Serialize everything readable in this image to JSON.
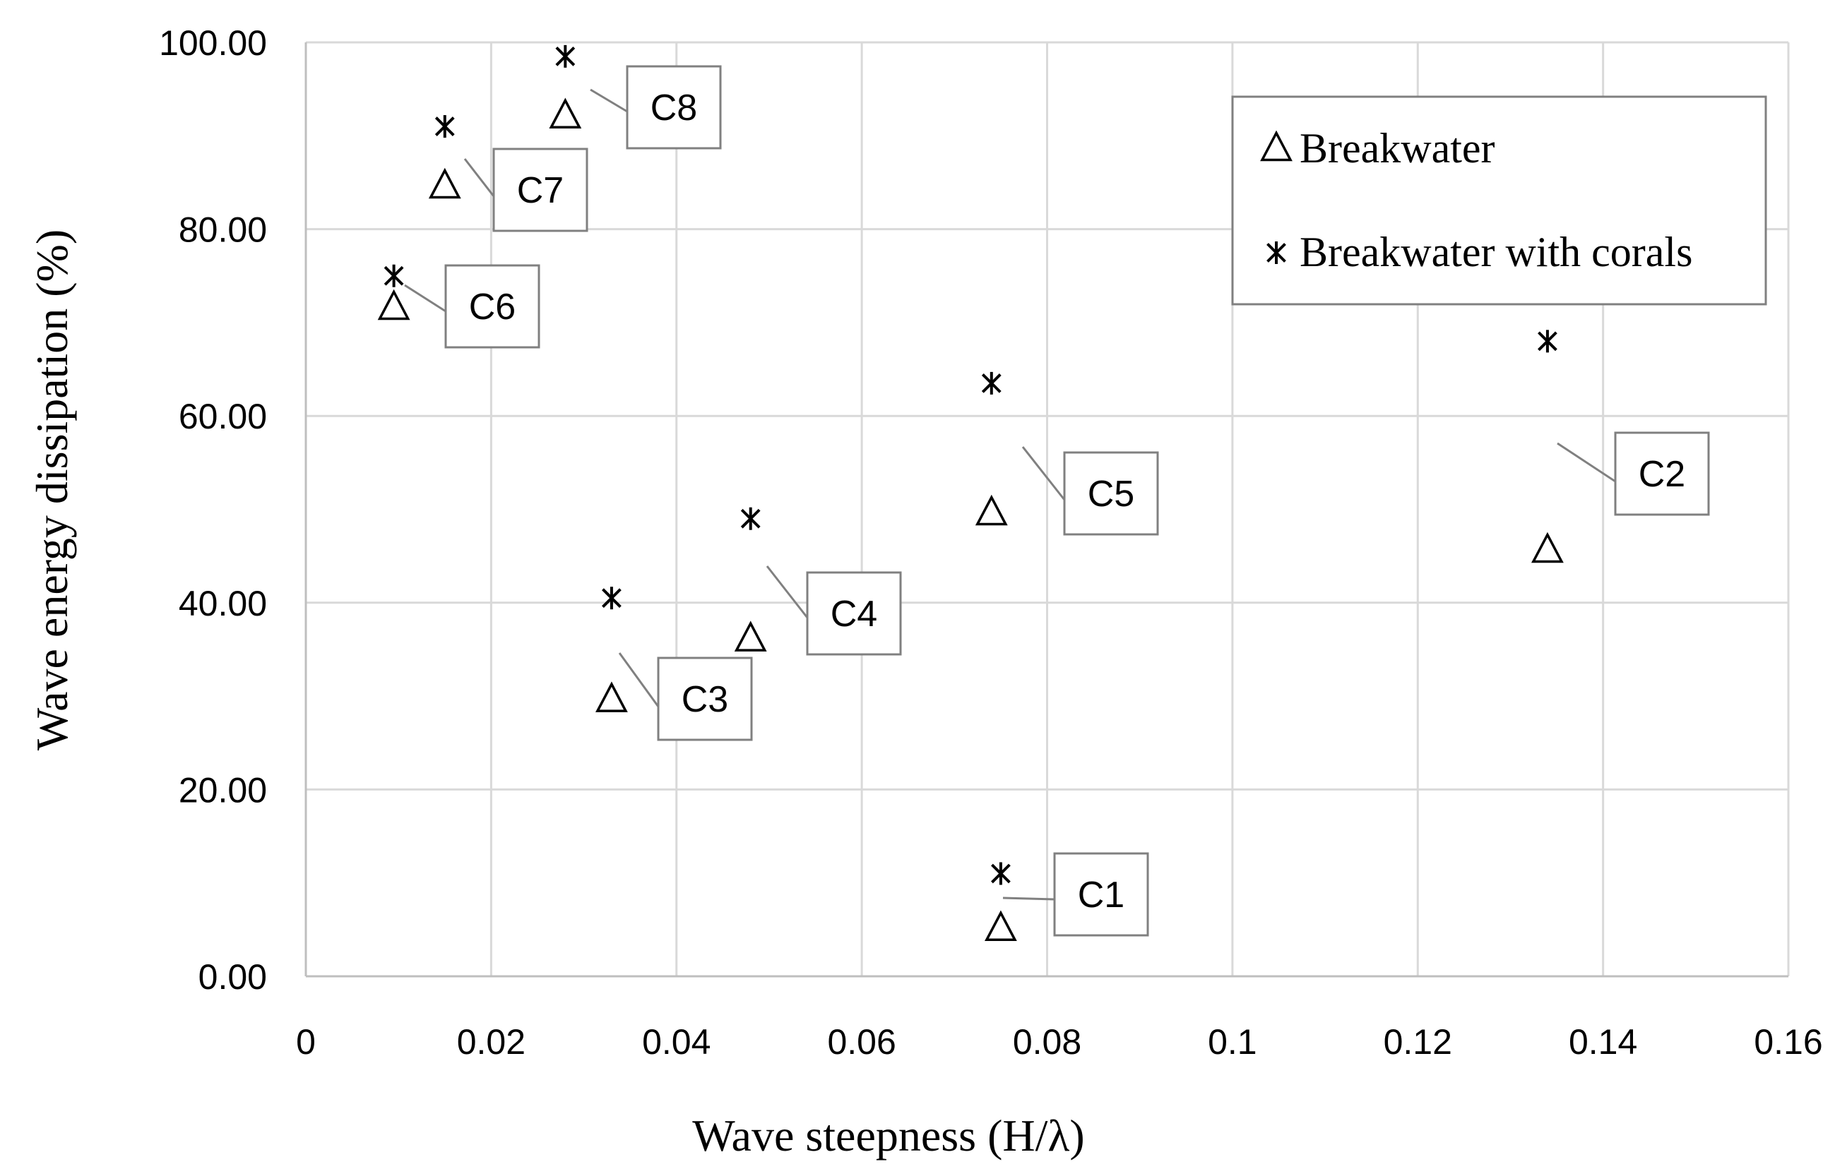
{
  "chart_data": {
    "type": "scatter",
    "title": "",
    "xlabel": "Wave steepness (H/λ)",
    "ylabel": "Wave energy dissipation (%)",
    "xlim": [
      0,
      0.16
    ],
    "ylim": [
      0,
      100
    ],
    "x_ticks": [
      0,
      0.02,
      0.04,
      0.06,
      0.08,
      0.1,
      0.12,
      0.14,
      0.16
    ],
    "x_tick_labels": [
      "0",
      "0.02",
      "0.04",
      "0.06",
      "0.08",
      "0.1",
      "0.12",
      "0.14",
      "0.16"
    ],
    "y_ticks": [
      0,
      20,
      40,
      60,
      80,
      100
    ],
    "y_tick_labels": [
      "0.00",
      "20.00",
      "40.00",
      "60.00",
      "80.00",
      "100.00"
    ],
    "grid": true,
    "legend_position": "top-right",
    "series": [
      {
        "name": "Breakwater",
        "marker": "triangle",
        "x": [
          0.075,
          0.134,
          0.033,
          0.048,
          0.074,
          0.0095,
          0.015,
          0.028
        ],
        "y": [
          5,
          45.5,
          29.5,
          36,
          49.5,
          71.5,
          84.5,
          92
        ]
      },
      {
        "name": "Breakwater with corals",
        "marker": "asterisk",
        "x": [
          0.075,
          0.134,
          0.033,
          0.048,
          0.074,
          0.0095,
          0.015,
          0.028
        ],
        "y": [
          11,
          68,
          40.5,
          49,
          63.5,
          75,
          91,
          98.5
        ]
      }
    ],
    "callouts": [
      {
        "label": "C1",
        "x": 0.075
      },
      {
        "label": "C2",
        "x": 0.134
      },
      {
        "label": "C3",
        "x": 0.033
      },
      {
        "label": "C4",
        "x": 0.048
      },
      {
        "label": "C5",
        "x": 0.074
      },
      {
        "label": "C6",
        "x": 0.0095
      },
      {
        "label": "C7",
        "x": 0.015
      },
      {
        "label": "C8",
        "x": 0.028
      }
    ],
    "colors": {
      "grid": "#d9d9d9",
      "axis": "#bfbfbf",
      "marker": "#000000",
      "callout_border": "#808080",
      "leader_line": "#808080"
    }
  }
}
